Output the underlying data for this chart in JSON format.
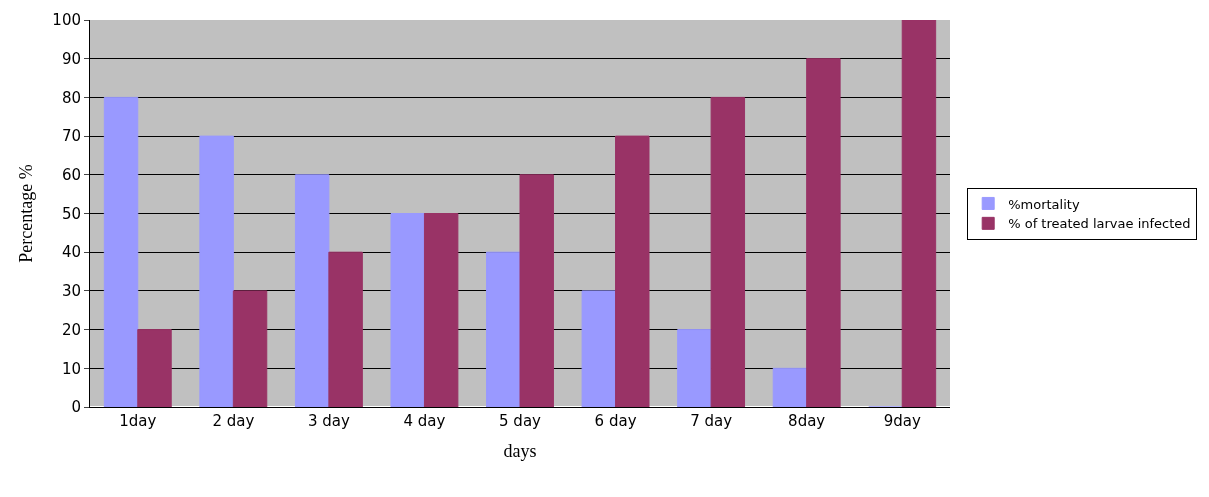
{
  "chart_data": {
    "type": "bar",
    "xlabel": "days",
    "ylabel": "Percentage %",
    "categories": [
      "1day",
      "2 day",
      "3 day",
      "4 day",
      "5 day",
      "6 day",
      "7 day",
      "8day",
      "9day"
    ],
    "series": [
      {
        "name": "%mortality",
        "color": "#9999ff",
        "values": [
          80,
          70,
          60,
          50,
          40,
          30,
          20,
          10,
          0
        ]
      },
      {
        "name": "% of treated larvae infected",
        "color": "#993366",
        "values": [
          20,
          30,
          40,
          50,
          60,
          70,
          80,
          90,
          100
        ]
      }
    ],
    "ylim": [
      0,
      100
    ],
    "yticks": [
      0,
      10,
      20,
      30,
      40,
      50,
      60,
      70,
      80,
      90,
      100
    ],
    "grid": "y",
    "legend": "right"
  }
}
